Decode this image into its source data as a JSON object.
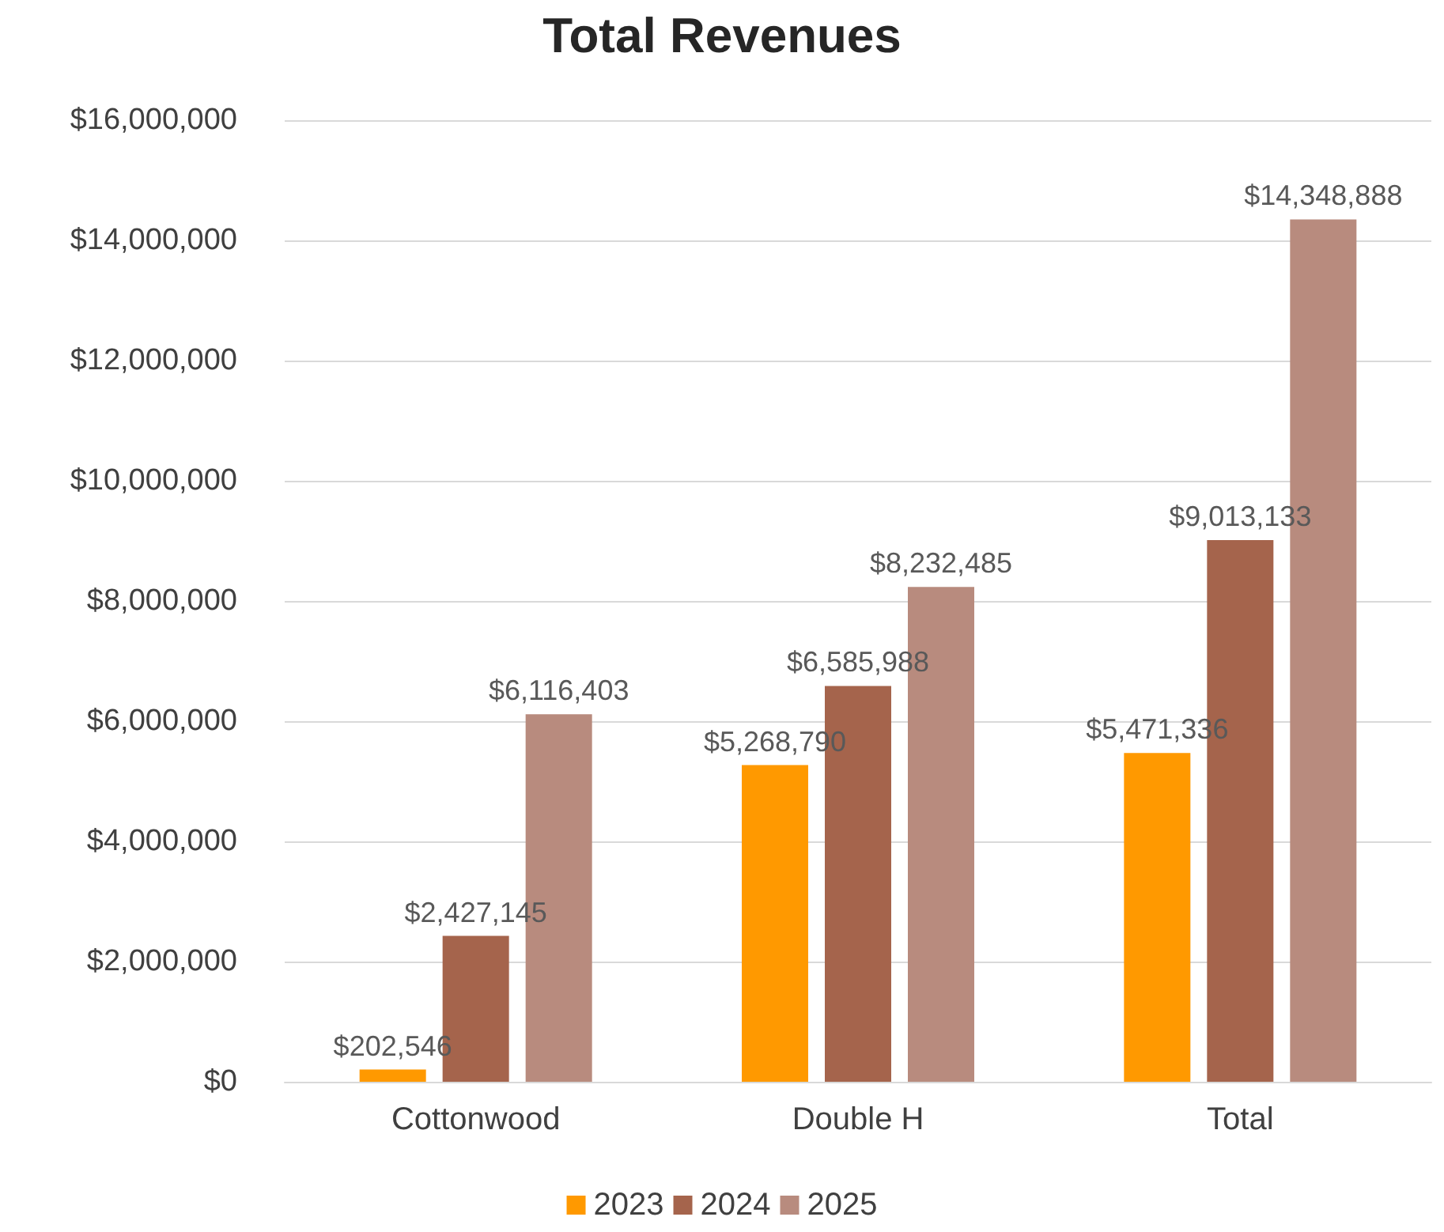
{
  "chart_data": {
    "type": "bar",
    "title": "Total Revenues",
    "categories": [
      "Cottonwood",
      "Double H",
      "Total"
    ],
    "series": [
      {
        "name": "2023",
        "color": "#ff9900",
        "values": [
          202546,
          5268790,
          5471336
        ],
        "value_labels": [
          "$202,546",
          "$5,268,790",
          "$5,471,336"
        ]
      },
      {
        "name": "2024",
        "color": "#a5644c",
        "values": [
          2427145,
          6585988,
          9013133
        ],
        "value_labels": [
          "$2,427,145",
          "$6,585,988",
          "$9,013,133"
        ]
      },
      {
        "name": "2025",
        "color": "#b88b7e",
        "values": [
          6116403,
          8232485,
          14348888
        ],
        "value_labels": [
          "$6,116,403",
          "$8,232,485",
          "$14,348,888"
        ]
      }
    ],
    "ylim": [
      0,
      16000000
    ],
    "yticks": [
      {
        "value": 0,
        "label": "$0"
      },
      {
        "value": 2000000,
        "label": "$2,000,000"
      },
      {
        "value": 4000000,
        "label": "$4,000,000"
      },
      {
        "value": 6000000,
        "label": "$6,000,000"
      },
      {
        "value": 8000000,
        "label": "$8,000,000"
      },
      {
        "value": 10000000,
        "label": "$10,000,000"
      },
      {
        "value": 12000000,
        "label": "$12,000,000"
      },
      {
        "value": 14000000,
        "label": "$14,000,000"
      },
      {
        "value": 16000000,
        "label": "$16,000,000"
      }
    ],
    "grid": "y",
    "legend": "bottom"
  }
}
